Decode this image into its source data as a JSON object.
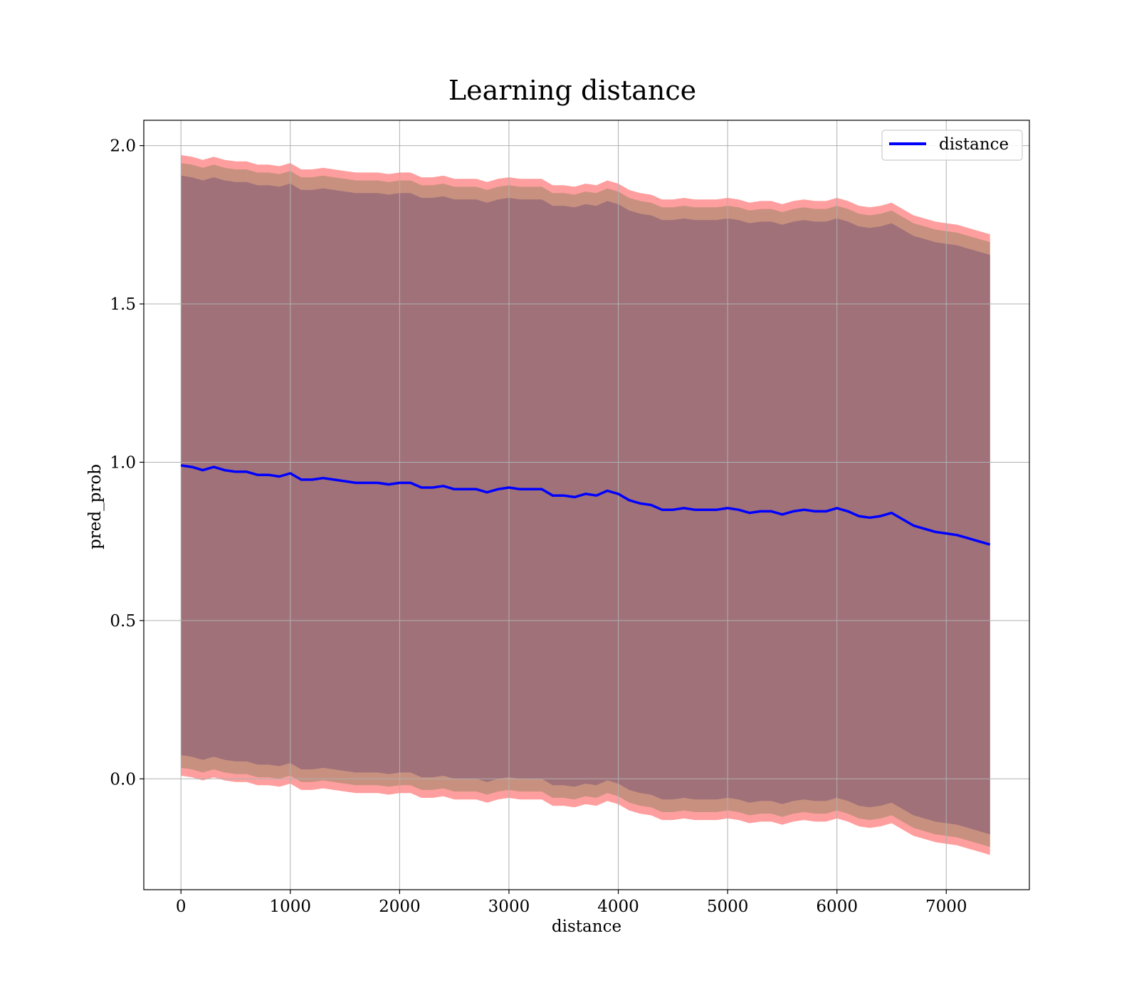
{
  "chart_data": {
    "type": "line",
    "title": "Learning distance",
    "xlabel": "distance",
    "ylabel": "pred_prob",
    "xlim": [
      -340,
      7760
    ],
    "ylim": [
      -0.35,
      2.08
    ],
    "xticks": [
      0,
      1000,
      2000,
      3000,
      4000,
      5000,
      6000,
      7000
    ],
    "xtick_labels": [
      "0",
      "1000",
      "2000",
      "3000",
      "4000",
      "5000",
      "6000",
      "7000"
    ],
    "yticks": [
      0.0,
      0.5,
      1.0,
      1.5,
      2.0
    ],
    "ytick_labels": [
      "0.0",
      "0.5",
      "1.0",
      "1.5",
      "2.0"
    ],
    "grid": true,
    "legend": {
      "position": "upper right",
      "entries": [
        "distance"
      ]
    },
    "series": [
      {
        "name": "distance",
        "color": "#0000ff",
        "x": [
          0,
          100,
          200,
          300,
          400,
          500,
          600,
          700,
          800,
          900,
          1000,
          1100,
          1200,
          1300,
          1400,
          1500,
          1600,
          1700,
          1800,
          1900,
          2000,
          2100,
          2200,
          2300,
          2400,
          2500,
          2600,
          2700,
          2800,
          2900,
          3000,
          3100,
          3200,
          3300,
          3400,
          3500,
          3600,
          3700,
          3800,
          3900,
          4000,
          4100,
          4200,
          4300,
          4400,
          4500,
          4600,
          4700,
          4800,
          4900,
          5000,
          5100,
          5200,
          5300,
          5400,
          5500,
          5600,
          5700,
          5800,
          5900,
          6000,
          6100,
          6200,
          6300,
          6400,
          6500,
          6600,
          6700,
          6800,
          6900,
          7000,
          7100,
          7200,
          7300,
          7400
        ],
        "y": [
          0.99,
          0.985,
          0.975,
          0.985,
          0.975,
          0.97,
          0.97,
          0.96,
          0.96,
          0.955,
          0.965,
          0.945,
          0.945,
          0.95,
          0.945,
          0.94,
          0.935,
          0.935,
          0.935,
          0.93,
          0.935,
          0.935,
          0.92,
          0.92,
          0.925,
          0.915,
          0.915,
          0.915,
          0.905,
          0.915,
          0.92,
          0.915,
          0.915,
          0.915,
          0.895,
          0.895,
          0.89,
          0.9,
          0.895,
          0.91,
          0.9,
          0.88,
          0.87,
          0.865,
          0.85,
          0.85,
          0.855,
          0.85,
          0.85,
          0.85,
          0.855,
          0.85,
          0.84,
          0.845,
          0.845,
          0.835,
          0.845,
          0.85,
          0.845,
          0.845,
          0.855,
          0.845,
          0.83,
          0.825,
          0.83,
          0.84,
          0.82,
          0.8,
          0.79,
          0.78,
          0.775,
          0.77,
          0.76,
          0.75,
          0.74
        ],
        "band_outer_offset": 0.98,
        "band_mid_offset": 0.955,
        "band_inner_offset": 0.915
      }
    ],
    "band_colors": {
      "outer": "#ff9e9e",
      "mid": "#c8917f",
      "inner": "#a07179"
    }
  }
}
